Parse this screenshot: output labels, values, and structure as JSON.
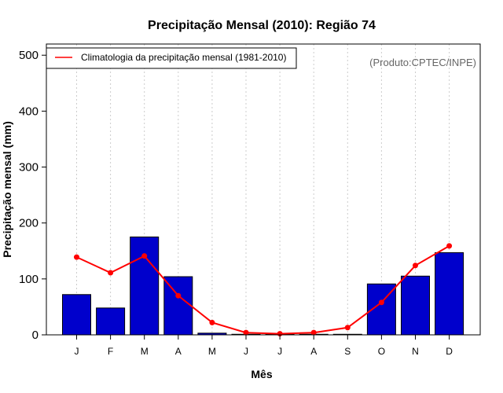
{
  "chart_data": {
    "type": "bar",
    "title": "Precipitação Mensal (2010): Região 74",
    "xlabel": "Mês",
    "ylabel": "Precipitação mensal (mm)",
    "ylim": [
      0,
      520
    ],
    "yticks": [
      0,
      100,
      200,
      300,
      400,
      500
    ],
    "grid": "vertical dotted",
    "categories": [
      "J",
      "F",
      "M",
      "A",
      "M",
      "J",
      "J",
      "A",
      "S",
      "O",
      "N",
      "D"
    ],
    "series": [
      {
        "name": "Precipitação mensal (2010)",
        "type": "bar",
        "color": "#0000cc",
        "values": [
          72,
          48,
          175,
          104,
          3,
          1,
          1,
          1,
          1,
          91,
          105,
          147
        ]
      },
      {
        "name": "Climatologia da precipitação mensal (1981-2010)",
        "type": "line",
        "color": "#ff0000",
        "values": [
          139,
          111,
          141,
          70,
          22,
          4,
          2,
          4,
          13,
          58,
          124,
          159
        ]
      }
    ],
    "legend": {
      "position": "top-left",
      "label": "Climatologia da precipitação mensal (1981-2010)"
    },
    "annotation": "(Produto:CPTEC/INPE)"
  }
}
